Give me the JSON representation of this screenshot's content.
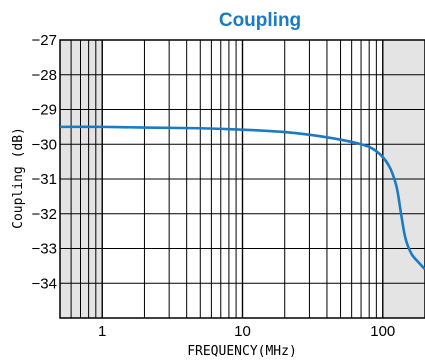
{
  "chart_data": {
    "type": "line",
    "title": "Coupling",
    "xlabel": "FREQUENCY(MHz)",
    "ylabel": "Coupling (dB)",
    "x_scale": "log",
    "xlim": [
      0.5,
      200
    ],
    "ylim": [
      -35,
      -27
    ],
    "x_tick_values": [
      1,
      10,
      100
    ],
    "x_tick_labels": [
      "1",
      "10",
      "100"
    ],
    "y_tick_values": [
      -27,
      -28,
      -29,
      -30,
      -31,
      -32,
      -33,
      -34
    ],
    "y_tick_labels": [
      "−27",
      "−28",
      "−29",
      "−30",
      "−31",
      "−32",
      "−33",
      "−34"
    ],
    "grid": true,
    "shaded_ranges": [
      [
        0.5,
        1
      ],
      [
        100,
        200
      ]
    ],
    "colors": {
      "line": "#1a7bc4",
      "shade": "#e4e4e4",
      "title": "#1a7bc4"
    },
    "series": [
      {
        "x": [
          0.5,
          1,
          2,
          5,
          10,
          20,
          40,
          70,
          90,
          110,
          125,
          135,
          145,
          160,
          180,
          200
        ],
        "y": [
          -29.5,
          -29.5,
          -29.52,
          -29.54,
          -29.58,
          -29.65,
          -29.8,
          -30.0,
          -30.2,
          -30.6,
          -31.2,
          -32.0,
          -32.7,
          -33.15,
          -33.4,
          -33.6
        ]
      }
    ]
  }
}
